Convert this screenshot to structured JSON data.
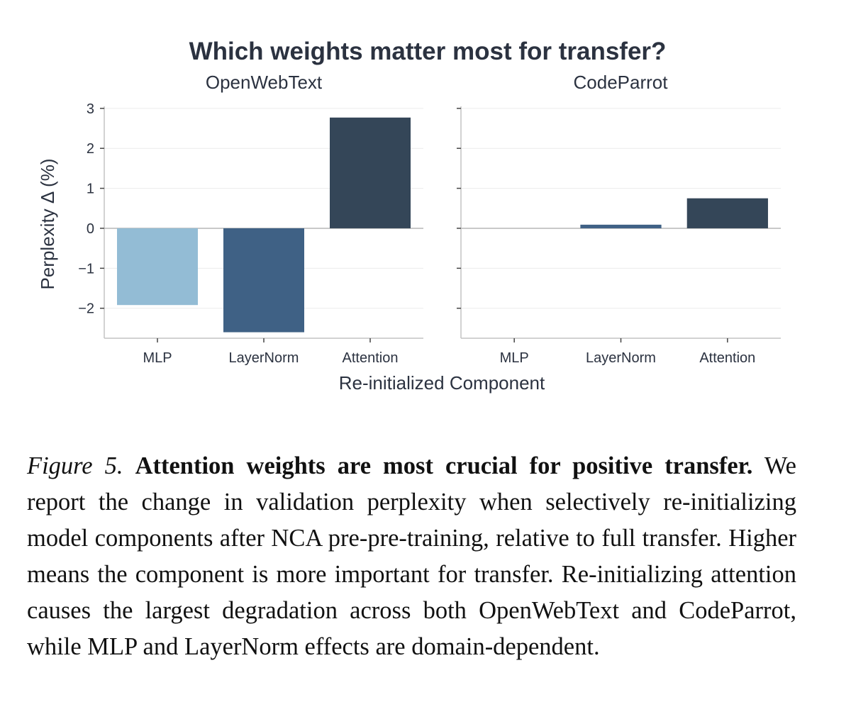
{
  "chart_data": {
    "type": "bar",
    "title": "Which weights matter most for transfer?",
    "xlabel": "Re-initialized Component",
    "ylabel": "Perplexity Δ (%)",
    "ylim": [
      -2.75,
      3.05
    ],
    "yticks": [
      3,
      2,
      1,
      0,
      -1,
      -2
    ],
    "ytick_labels": [
      "3",
      "2",
      "1",
      "0",
      "−1",
      "−2"
    ],
    "grid": true,
    "categories": [
      "MLP",
      "LayerNorm",
      "Attention"
    ],
    "colors": {
      "MLP": "#93bcd5",
      "LayerNorm": "#3f6185",
      "Attention": "#344658"
    },
    "panels": [
      {
        "name": "OpenWebText",
        "values": [
          -1.92,
          -2.6,
          2.77
        ]
      },
      {
        "name": "CodeParrot",
        "values": [
          0.0,
          0.09,
          0.75
        ]
      }
    ]
  },
  "caption": {
    "label": "Figure 5.",
    "bold_text": "Attention weights are most crucial for positive trans­fer.",
    "body": "We report the change in validation perplexity when selectively re-initializing model components after NCA pre-pre-training, rela­tive to full transfer. Higher means the component is more important for transfer. Re-initializing attention causes the largest degrada­tion across both OpenWebText and CodeParrot, while MLP and LayerNorm effects are domain-dependent."
  }
}
